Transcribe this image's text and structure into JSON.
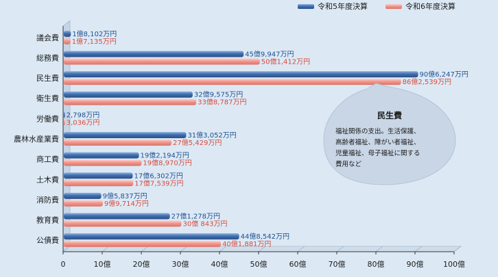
{
  "chart_data": {
    "type": "bar",
    "orientation": "horizontal",
    "categories": [
      "議会費",
      "総務費",
      "民生費",
      "衛生費",
      "労働費",
      "農林水産業費",
      "商工費",
      "土木費",
      "消防費",
      "教育費",
      "公債費"
    ],
    "series": [
      {
        "name": "令和5年度決算",
        "color": "#3f6fb0",
        "values": [
          1.8102,
          45.9947,
          90.6247,
          32.9575,
          0.2798,
          31.3052,
          19.2194,
          17.6302,
          9.5837,
          27.1278,
          44.8542
        ],
        "labels": [
          "1億8,102万円",
          "45億9,947万円",
          "90億6,247万円",
          "32億9,575万円",
          "2,798万円",
          "31億3,052万円",
          "19億2,194万円",
          "17億6,302万円",
          "9億5,837万円",
          "27億1,278万円",
          "44億8,542万円"
        ]
      },
      {
        "name": "令和6年度決算",
        "color": "#f2968c",
        "values": [
          1.7135,
          50.1412,
          86.2539,
          33.8787,
          0.3036,
          27.5429,
          19.897,
          17.7539,
          9.9714,
          30.0843,
          40.1881
        ],
        "labels": [
          "1億7,135万円",
          "50億1,412万円",
          "86億2,539万円",
          "33億8,787万円",
          "3,036万円",
          "27億5,429万円",
          "19億8,970万円",
          "17億7,539万円",
          "9億9,714万円",
          "30億 843万円",
          "40億1,881万円"
        ]
      }
    ],
    "x_ticks": [
      0,
      10,
      20,
      30,
      40,
      50,
      60,
      70,
      80,
      90,
      100
    ],
    "x_tick_labels": [
      "0",
      "10億",
      "20億",
      "30億",
      "40億",
      "50億",
      "60億",
      "70億",
      "80億",
      "90億",
      "100億"
    ],
    "xlim": [
      0,
      100
    ],
    "legend_position": "top-right",
    "annotation": {
      "title": "民生費",
      "lines": [
        "福祉関係の支出。生活保護、",
        "高齢者福祉、障がい者福祉、",
        "児童福祉、母子福祉に関する",
        "費用など"
      ]
    }
  }
}
